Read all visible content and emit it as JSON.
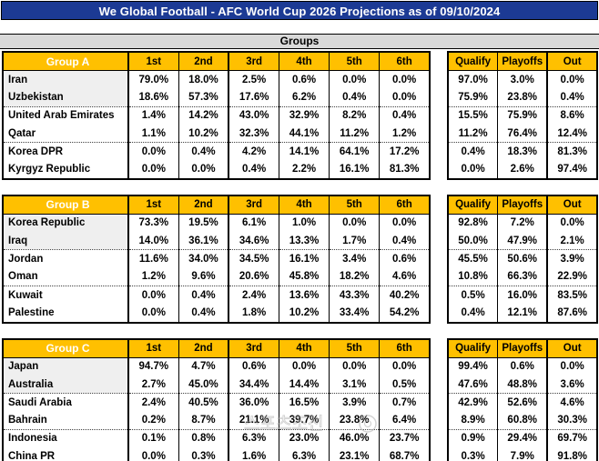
{
  "title": "We Global Football - AFC World Cup 2026 Projections as of 09/10/2024",
  "section_header": "Groups",
  "watermark": "스포츠조선",
  "colors": {
    "navy": "#1C3A94",
    "gold": "#FFC000",
    "band_gray": "#D9D9D9",
    "row_shade_gray": "#EFEFEF",
    "border_black": "#000000"
  },
  "position_headers": [
    "1st",
    "2nd",
    "3rd",
    "4th",
    "5th",
    "6th"
  ],
  "outcome_headers": [
    "Qualify",
    "Playoffs",
    "Out"
  ],
  "chart_data": [
    {
      "type": "table",
      "label": "Group A",
      "teams": [
        {
          "name": "Iran",
          "positions": [
            "79.0%",
            "18.0%",
            "2.5%",
            "0.6%",
            "0.0%",
            "0.0%"
          ],
          "qualify": "97.0%",
          "playoffs": "3.0%",
          "out": "0.0%"
        },
        {
          "name": "Uzbekistan",
          "positions": [
            "18.6%",
            "57.3%",
            "17.6%",
            "6.2%",
            "0.4%",
            "0.0%"
          ],
          "qualify": "75.9%",
          "playoffs": "23.8%",
          "out": "0.4%"
        },
        {
          "name": "United Arab Emirates",
          "positions": [
            "1.4%",
            "14.2%",
            "43.0%",
            "32.9%",
            "8.2%",
            "0.4%"
          ],
          "qualify": "15.5%",
          "playoffs": "75.9%",
          "out": "8.6%"
        },
        {
          "name": "Qatar",
          "positions": [
            "1.1%",
            "10.2%",
            "32.3%",
            "44.1%",
            "11.2%",
            "1.2%"
          ],
          "qualify": "11.2%",
          "playoffs": "76.4%",
          "out": "12.4%"
        },
        {
          "name": "Korea DPR",
          "positions": [
            "0.0%",
            "0.4%",
            "4.2%",
            "14.1%",
            "64.1%",
            "17.2%"
          ],
          "qualify": "0.4%",
          "playoffs": "18.3%",
          "out": "81.3%"
        },
        {
          "name": "Kyrgyz Republic",
          "positions": [
            "0.0%",
            "0.0%",
            "0.4%",
            "2.2%",
            "16.1%",
            "81.3%"
          ],
          "qualify": "0.0%",
          "playoffs": "2.6%",
          "out": "97.4%"
        }
      ]
    },
    {
      "type": "table",
      "label": "Group B",
      "teams": [
        {
          "name": "Korea Republic",
          "positions": [
            "73.3%",
            "19.5%",
            "6.1%",
            "1.0%",
            "0.0%",
            "0.0%"
          ],
          "qualify": "92.8%",
          "playoffs": "7.2%",
          "out": "0.0%"
        },
        {
          "name": "Iraq",
          "positions": [
            "14.0%",
            "36.1%",
            "34.6%",
            "13.3%",
            "1.7%",
            "0.4%"
          ],
          "qualify": "50.0%",
          "playoffs": "47.9%",
          "out": "2.1%"
        },
        {
          "name": "Jordan",
          "positions": [
            "11.6%",
            "34.0%",
            "34.5%",
            "16.1%",
            "3.4%",
            "0.6%"
          ],
          "qualify": "45.5%",
          "playoffs": "50.6%",
          "out": "3.9%"
        },
        {
          "name": "Oman",
          "positions": [
            "1.2%",
            "9.6%",
            "20.6%",
            "45.8%",
            "18.2%",
            "4.6%"
          ],
          "qualify": "10.8%",
          "playoffs": "66.3%",
          "out": "22.9%"
        },
        {
          "name": "Kuwait",
          "positions": [
            "0.0%",
            "0.4%",
            "2.4%",
            "13.6%",
            "43.3%",
            "40.2%"
          ],
          "qualify": "0.5%",
          "playoffs": "16.0%",
          "out": "83.5%"
        },
        {
          "name": "Palestine",
          "positions": [
            "0.0%",
            "0.4%",
            "1.8%",
            "10.2%",
            "33.4%",
            "54.2%"
          ],
          "qualify": "0.4%",
          "playoffs": "12.1%",
          "out": "87.6%"
        }
      ]
    },
    {
      "type": "table",
      "label": "Group C",
      "teams": [
        {
          "name": "Japan",
          "positions": [
            "94.7%",
            "4.7%",
            "0.6%",
            "0.0%",
            "0.0%",
            "0.0%"
          ],
          "qualify": "99.4%",
          "playoffs": "0.6%",
          "out": "0.0%"
        },
        {
          "name": "Australia",
          "positions": [
            "2.7%",
            "45.0%",
            "34.4%",
            "14.4%",
            "3.1%",
            "0.5%"
          ],
          "qualify": "47.6%",
          "playoffs": "48.8%",
          "out": "3.6%"
        },
        {
          "name": "Saudi Arabia",
          "positions": [
            "2.4%",
            "40.5%",
            "36.0%",
            "16.5%",
            "3.9%",
            "0.7%"
          ],
          "qualify": "42.9%",
          "playoffs": "52.6%",
          "out": "4.6%"
        },
        {
          "name": "Bahrain",
          "positions": [
            "0.2%",
            "8.7%",
            "21.1%",
            "39.7%",
            "23.8%",
            "6.4%"
          ],
          "qualify": "8.9%",
          "playoffs": "60.8%",
          "out": "30.3%"
        },
        {
          "name": "Indonesia",
          "positions": [
            "0.1%",
            "0.8%",
            "6.3%",
            "23.0%",
            "46.0%",
            "23.7%"
          ],
          "qualify": "0.9%",
          "playoffs": "29.4%",
          "out": "69.7%"
        },
        {
          "name": "China PR",
          "positions": [
            "0.0%",
            "0.3%",
            "1.6%",
            "6.3%",
            "23.1%",
            "68.7%"
          ],
          "qualify": "0.3%",
          "playoffs": "7.9%",
          "out": "91.8%"
        }
      ]
    }
  ]
}
